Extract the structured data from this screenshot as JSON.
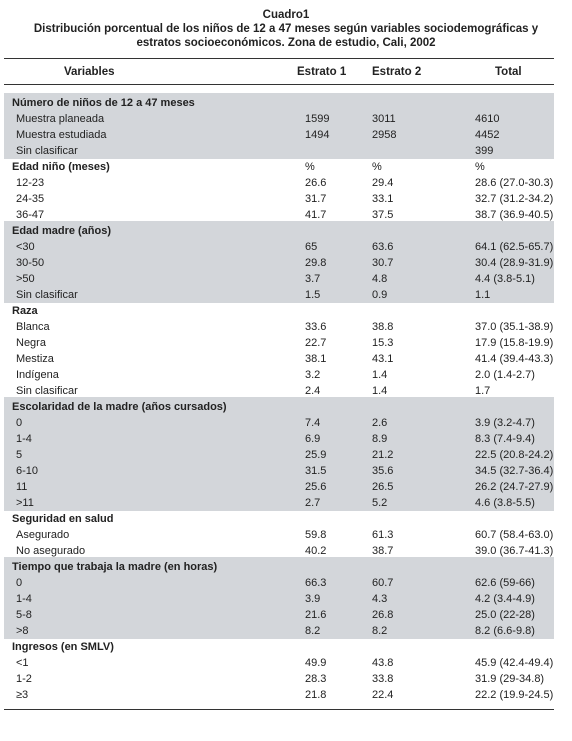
{
  "caption": {
    "label": "Cuadro1",
    "line1": "Distribución porcentual de los niños de 12 a 47 meses según variables sociodemográficas y",
    "line2": "estratos socioeconómicos. Zona de estudio, Cali, 2002"
  },
  "table": {
    "headers": [
      "Variables",
      "Estrato 1",
      "Estrato 2",
      "Total"
    ],
    "sections": [
      {
        "title": "Número de niños de 12 a 47 meses",
        "shaded": true,
        "units": [
          "",
          "",
          ""
        ],
        "rows": [
          [
            "Muestra planeada",
            "1599",
            "3011",
            "4610"
          ],
          [
            "Muestra estudiada",
            "1494",
            "2958",
            "4452"
          ],
          [
            "Sin clasificar",
            "",
            "",
            "399"
          ]
        ]
      },
      {
        "title": "Edad niño (meses)",
        "shaded": false,
        "units": [
          "%",
          "%",
          "%"
        ],
        "rows": [
          [
            "12-23",
            "26.6",
            "29.4",
            "28.6 (27.0-30.3)"
          ],
          [
            "24-35",
            "31.7",
            "33.1",
            "32.7 (31.2-34.2)"
          ],
          [
            "36-47",
            "41.7",
            "37.5",
            "38.7 (36.9-40.5)"
          ]
        ]
      },
      {
        "title": "Edad madre (años)",
        "shaded": true,
        "units": [
          "",
          "",
          ""
        ],
        "rows": [
          [
            "<30",
            "65",
            "63.6",
            "64.1 (62.5-65.7)"
          ],
          [
            "30-50",
            "29.8",
            "30.7",
            "30.4 (28.9-31.9)"
          ],
          [
            ">50",
            "3.7",
            "4.8",
            "4.4 (3.8-5.1)"
          ],
          [
            "Sin clasificar",
            "1.5",
            "0.9",
            "1.1"
          ]
        ]
      },
      {
        "title": "Raza",
        "shaded": false,
        "units": [
          "",
          "",
          ""
        ],
        "rows": [
          [
            "Blanca",
            "33.6",
            "38.8",
            "37.0 (35.1-38.9)"
          ],
          [
            "Negra",
            "22.7",
            "15.3",
            "17.9 (15.8-19.9)"
          ],
          [
            "Mestiza",
            "38.1",
            "43.1",
            "41.4 (39.4-43.3)"
          ],
          [
            "Indígena",
            "3.2",
            "1.4",
            "2.0 (1.4-2.7)"
          ],
          [
            "Sin clasificar",
            "2.4",
            "1.4",
            "1.7"
          ]
        ]
      },
      {
        "title": "Escolaridad de la madre (años cursados)",
        "shaded": true,
        "units": [
          "",
          "",
          ""
        ],
        "rows": [
          [
            "0",
            "7.4",
            "2.6",
            "3.9 (3.2-4.7)"
          ],
          [
            "1-4",
            "6.9",
            "8.9",
            "8.3 (7.4-9.4)"
          ],
          [
            "5",
            "25.9",
            "21.2",
            "22.5 (20.8-24.2)"
          ],
          [
            "6-10",
            "31.5",
            "35.6",
            "34.5 (32.7-36.4)"
          ],
          [
            "11",
            "25.6",
            "26.5",
            "26.2 (24.7-27.9)"
          ],
          [
            ">11",
            "2.7",
            "5.2",
            "4.6 (3.8-5.5)"
          ]
        ]
      },
      {
        "title": "Seguridad en salud",
        "shaded": false,
        "units": [
          "",
          "",
          ""
        ],
        "rows": [
          [
            "Asegurado",
            "59.8",
            "61.3",
            "60.7 (58.4-63.0)"
          ],
          [
            "No asegurado",
            "40.2",
            "38.7",
            "39.0 (36.7-41.3)"
          ]
        ]
      },
      {
        "title": "Tiempo que trabaja la madre (en horas)",
        "shaded": true,
        "units": [
          "",
          "",
          ""
        ],
        "rows": [
          [
            "0",
            "66.3",
            "60.7",
            "62.6 (59-66)"
          ],
          [
            "1-4",
            "3.9",
            "4.3",
            "4.2 (3.4-4.9)"
          ],
          [
            "5-8",
            "21.6",
            "26.8",
            "25.0 (22-28)"
          ],
          [
            ">8",
            "8.2",
            "8.2",
            "8.2 (6.6-9.8)"
          ]
        ]
      },
      {
        "title": "Ingresos (en SMLV)",
        "shaded": false,
        "units": [
          "",
          "",
          ""
        ],
        "rows": [
          [
            "<1",
            "49.9",
            "43.8",
            "45.9 (42.4-49.4)"
          ],
          [
            "1-2",
            "28.3",
            "33.8",
            "31.9 (29-34.8)"
          ],
          [
            "≥3",
            "21.8",
            "22.4",
            "22.2 (19.9-24.5)"
          ]
        ]
      }
    ]
  }
}
